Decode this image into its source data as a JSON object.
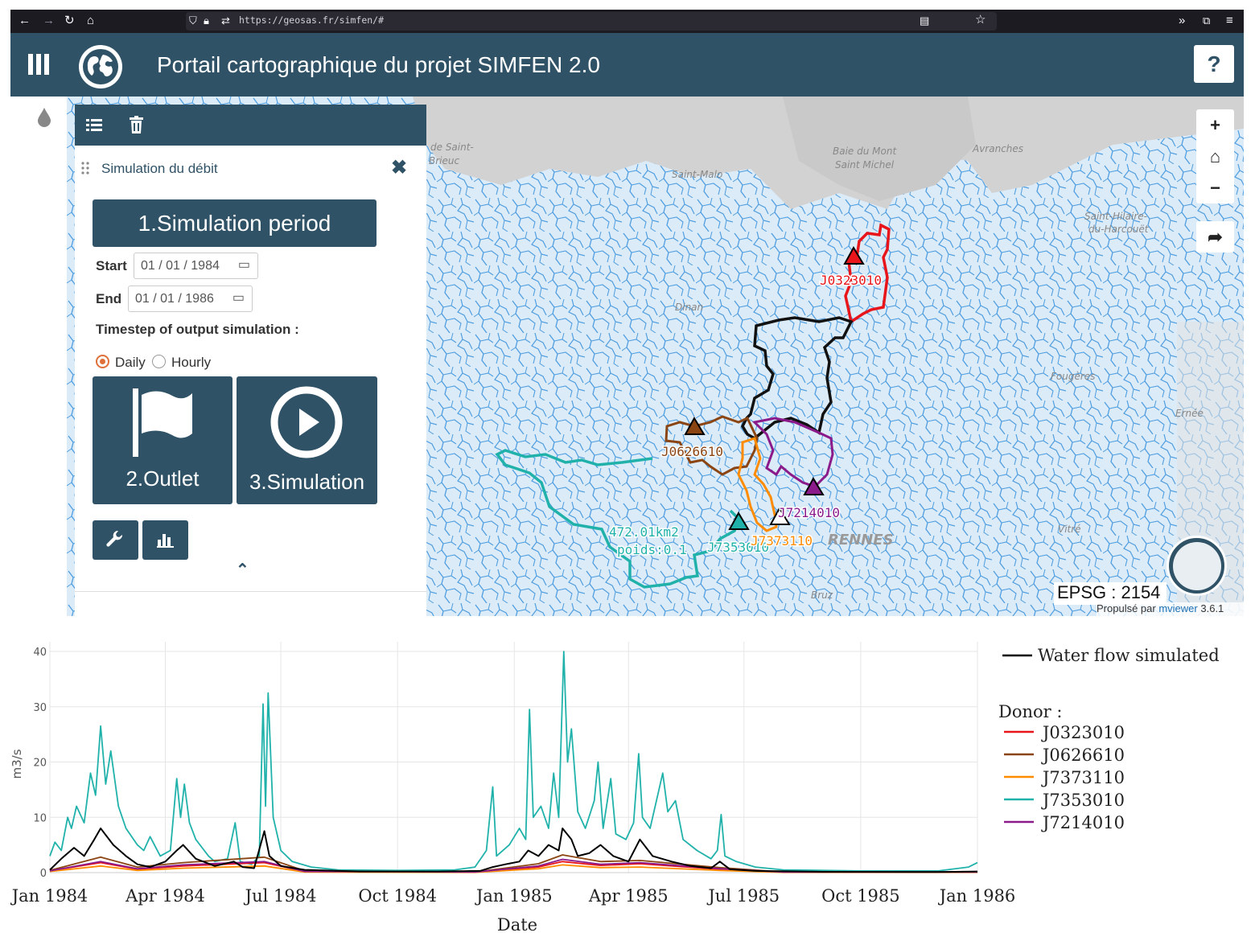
{
  "browser": {
    "url": "https://geosas.fr/simfen/#"
  },
  "app": {
    "title": "Portail cartographique du projet SIMFEN 2.0",
    "help_label": "?",
    "colors": {
      "primary": "#2f5266",
      "river": "#4f9ee0"
    }
  },
  "panel": {
    "title": "Simulation du débit",
    "step1_label": "1.Simulation period",
    "start_label": "Start",
    "start_value": "01 / 01 / 1984",
    "end_label": "End",
    "end_value": "01 / 01 / 1986",
    "timestep_label": "Timestep of output simulation :",
    "timestep_options": [
      "Daily",
      "Hourly"
    ],
    "timestep_selected": "Daily",
    "step2_label": "2.Outlet",
    "step3_label": "3.Simulation"
  },
  "map": {
    "place_labels": [
      "Baie de Saint-\nBrieuc",
      "Baie du Mont\nSaint Michel",
      "Saint-Malo",
      "Avranches",
      "Saint-Hilaire-\ndu-Harcouët",
      "Dinan",
      "Fougères",
      "Ernée",
      "RENNES",
      "Vitré",
      "Bruz"
    ],
    "stations": [
      {
        "code": "J0323010",
        "color": "#e8161b"
      },
      {
        "code": "J0626610",
        "color": "#8b4513"
      },
      {
        "code": "J7214010",
        "color": "#8b1a8b"
      },
      {
        "code": "J7353010",
        "color": "#20b2aa"
      },
      {
        "code": "J7373110",
        "color": "#ff8c00"
      }
    ],
    "area_label": "472.01km2",
    "weight_label": "poids:0.1",
    "epsg_label": "EPSG : 2154",
    "credit_prefix": "Propulsé par",
    "credit_link": "mviewer",
    "credit_version": "3.6.1"
  },
  "chart_data": {
    "type": "line",
    "xlabel": "Date",
    "ylabel": "m3/s",
    "ylim": [
      0,
      40
    ],
    "yticks": [
      0,
      10,
      20,
      30,
      40
    ],
    "xticks": [
      "Jan 1984",
      "Apr 1984",
      "Jul 1984",
      "Oct 1984",
      "Jan 1985",
      "Apr 1985",
      "Jul 1985",
      "Oct 1985",
      "Jan 1986"
    ],
    "legend_main": "Water flow simulated",
    "legend_donor_title": "Donor :",
    "series": [
      {
        "name": "Water flow simulated",
        "color": "#000000",
        "points": [
          [
            "1984-01-01",
            0.5
          ],
          [
            "1984-01-10",
            2.5
          ],
          [
            "1984-01-20",
            4.5
          ],
          [
            "1984-01-28",
            3
          ],
          [
            "1984-02-05",
            6
          ],
          [
            "1984-02-10",
            8
          ],
          [
            "1984-02-20",
            5
          ],
          [
            "1984-03-01",
            3
          ],
          [
            "1984-03-10",
            1.5
          ],
          [
            "1984-03-20",
            1
          ],
          [
            "1984-04-01",
            2
          ],
          [
            "1984-04-10",
            4
          ],
          [
            "1984-04-15",
            5
          ],
          [
            "1984-04-25",
            2.5
          ],
          [
            "1984-05-10",
            1.2
          ],
          [
            "1984-05-25",
            2
          ],
          [
            "1984-06-01",
            1
          ],
          [
            "1984-06-10",
            0.8
          ],
          [
            "1984-06-18",
            7.5
          ],
          [
            "1984-06-22",
            3
          ],
          [
            "1984-07-01",
            1.2
          ],
          [
            "1984-07-20",
            0.5
          ],
          [
            "1984-09-01",
            0.2
          ],
          [
            "1984-11-01",
            0.2
          ],
          [
            "1984-12-05",
            0.3
          ],
          [
            "1984-12-15",
            1
          ],
          [
            "1984-12-25",
            1.5
          ],
          [
            "1985-01-05",
            2
          ],
          [
            "1985-01-12",
            4
          ],
          [
            "1985-01-20",
            3
          ],
          [
            "1985-01-28",
            5
          ],
          [
            "1985-02-05",
            4
          ],
          [
            "1985-02-08",
            8
          ],
          [
            "1985-02-15",
            6
          ],
          [
            "1985-02-20",
            3
          ],
          [
            "1985-03-01",
            3.5
          ],
          [
            "1985-03-10",
            5
          ],
          [
            "1985-03-20",
            3
          ],
          [
            "1985-04-01",
            2
          ],
          [
            "1985-04-10",
            6
          ],
          [
            "1985-04-20",
            3
          ],
          [
            "1985-05-05",
            2
          ],
          [
            "1985-05-20",
            1.2
          ],
          [
            "1985-06-05",
            0.8
          ],
          [
            "1985-06-12",
            2
          ],
          [
            "1985-06-20",
            0.6
          ],
          [
            "1985-07-10",
            0.3
          ],
          [
            "1985-09-01",
            0.15
          ],
          [
            "1985-12-01",
            0.1
          ],
          [
            "1986-01-01",
            0.2
          ]
        ]
      },
      {
        "name": "J0323010",
        "color": "#e8161b",
        "points": [
          [
            "1984-01-01",
            0.3
          ],
          [
            "1984-02-10",
            1.8
          ],
          [
            "1984-03-10",
            0.6
          ],
          [
            "1984-04-15",
            1.2
          ],
          [
            "1984-06-18",
            1.8
          ],
          [
            "1984-07-20",
            0.2
          ],
          [
            "1984-12-01",
            0.1
          ],
          [
            "1985-01-20",
            1
          ],
          [
            "1985-02-08",
            2
          ],
          [
            "1985-03-10",
            1.3
          ],
          [
            "1985-04-10",
            1.6
          ],
          [
            "1985-06-12",
            0.6
          ],
          [
            "1985-08-01",
            0.1
          ],
          [
            "1986-01-01",
            0.1
          ]
        ]
      },
      {
        "name": "J0626610",
        "color": "#8b4513",
        "points": [
          [
            "1984-01-01",
            0.4
          ],
          [
            "1984-02-10",
            2.8
          ],
          [
            "1984-03-10",
            1
          ],
          [
            "1984-04-15",
            1.8
          ],
          [
            "1984-06-18",
            2.8
          ],
          [
            "1984-07-20",
            0.3
          ],
          [
            "1984-12-01",
            0.1
          ],
          [
            "1985-01-20",
            1.6
          ],
          [
            "1985-02-08",
            3.2
          ],
          [
            "1985-03-10",
            2
          ],
          [
            "1985-04-10",
            2.2
          ],
          [
            "1985-06-12",
            0.9
          ],
          [
            "1985-08-01",
            0.1
          ],
          [
            "1986-01-01",
            0.1
          ]
        ]
      },
      {
        "name": "J7373110",
        "color": "#ff8c00",
        "points": [
          [
            "1984-01-01",
            0.2
          ],
          [
            "1984-02-10",
            1.2
          ],
          [
            "1984-03-10",
            0.4
          ],
          [
            "1984-04-15",
            0.8
          ],
          [
            "1984-06-18",
            1.2
          ],
          [
            "1984-07-20",
            0.1
          ],
          [
            "1984-12-01",
            0.05
          ],
          [
            "1985-01-20",
            0.7
          ],
          [
            "1985-02-08",
            1.4
          ],
          [
            "1985-03-10",
            0.9
          ],
          [
            "1985-04-10",
            1
          ],
          [
            "1985-06-12",
            0.4
          ],
          [
            "1985-08-01",
            0.05
          ],
          [
            "1986-01-01",
            0.05
          ]
        ]
      },
      {
        "name": "J7353010",
        "color": "#20b2aa",
        "points": [
          [
            "1984-01-01",
            3
          ],
          [
            "1984-01-05",
            5.5
          ],
          [
            "1984-01-10",
            4
          ],
          [
            "1984-01-15",
            10
          ],
          [
            "1984-01-18",
            8
          ],
          [
            "1984-01-22",
            12
          ],
          [
            "1984-01-28",
            9
          ],
          [
            "1984-02-02",
            18
          ],
          [
            "1984-02-06",
            14
          ],
          [
            "1984-02-10",
            26.5
          ],
          [
            "1984-02-14",
            16
          ],
          [
            "1984-02-18",
            22
          ],
          [
            "1984-02-24",
            12
          ],
          [
            "1984-03-01",
            8
          ],
          [
            "1984-03-10",
            5
          ],
          [
            "1984-03-15",
            4
          ],
          [
            "1984-03-20",
            6.5
          ],
          [
            "1984-03-28",
            3
          ],
          [
            "1984-04-05",
            4
          ],
          [
            "1984-04-10",
            17
          ],
          [
            "1984-04-13",
            10
          ],
          [
            "1984-04-16",
            16
          ],
          [
            "1984-04-20",
            9
          ],
          [
            "1984-04-25",
            6
          ],
          [
            "1984-05-05",
            3
          ],
          [
            "1984-05-10",
            2
          ],
          [
            "1984-05-20",
            2.5
          ],
          [
            "1984-05-26",
            9
          ],
          [
            "1984-05-30",
            2
          ],
          [
            "1984-06-08",
            1.5
          ],
          [
            "1984-06-14",
            3
          ],
          [
            "1984-06-17",
            30.5
          ],
          [
            "1984-06-19",
            12
          ],
          [
            "1984-06-21",
            32.5
          ],
          [
            "1984-06-25",
            10
          ],
          [
            "1984-07-01",
            4
          ],
          [
            "1984-07-10",
            2
          ],
          [
            "1984-07-25",
            1
          ],
          [
            "1984-08-15",
            0.5
          ],
          [
            "1984-10-01",
            0.4
          ],
          [
            "1984-11-15",
            0.5
          ],
          [
            "1984-12-01",
            1
          ],
          [
            "1984-12-10",
            4
          ],
          [
            "1984-12-15",
            15.5
          ],
          [
            "1984-12-18",
            3
          ],
          [
            "1984-12-28",
            5
          ],
          [
            "1985-01-05",
            8
          ],
          [
            "1985-01-10",
            6
          ],
          [
            "1985-01-13",
            29.5
          ],
          [
            "1985-01-16",
            10
          ],
          [
            "1985-01-22",
            12
          ],
          [
            "1985-01-28",
            8
          ],
          [
            "1985-02-01",
            18
          ],
          [
            "1985-02-05",
            10
          ],
          [
            "1985-02-09",
            40
          ],
          [
            "1985-02-12",
            20
          ],
          [
            "1985-02-15",
            26
          ],
          [
            "1985-02-20",
            11
          ],
          [
            "1985-02-26",
            8
          ],
          [
            "1985-03-05",
            13
          ],
          [
            "1985-03-08",
            20
          ],
          [
            "1985-03-12",
            8
          ],
          [
            "1985-03-18",
            17
          ],
          [
            "1985-03-22",
            7
          ],
          [
            "1985-03-30",
            6
          ],
          [
            "1985-04-05",
            9
          ],
          [
            "1985-04-09",
            21.5
          ],
          [
            "1985-04-12",
            10
          ],
          [
            "1985-04-18",
            8
          ],
          [
            "1985-04-25",
            15
          ],
          [
            "1985-04-28",
            18
          ],
          [
            "1985-05-02",
            11
          ],
          [
            "1985-05-08",
            13
          ],
          [
            "1985-05-14",
            6
          ],
          [
            "1985-05-25",
            4
          ],
          [
            "1985-06-05",
            2.5
          ],
          [
            "1985-06-10",
            4
          ],
          [
            "1985-06-13",
            10.5
          ],
          [
            "1985-06-16",
            3
          ],
          [
            "1985-06-25",
            2
          ],
          [
            "1985-07-10",
            1
          ],
          [
            "1985-08-01",
            0.5
          ],
          [
            "1985-10-01",
            0.3
          ],
          [
            "1985-12-01",
            0.3
          ],
          [
            "1985-12-25",
            1
          ],
          [
            "1986-01-01",
            1.8
          ]
        ]
      },
      {
        "name": "J7214010",
        "color": "#8b1a8b",
        "points": [
          [
            "1984-01-01",
            0.3
          ],
          [
            "1984-02-10",
            2
          ],
          [
            "1984-03-10",
            0.7
          ],
          [
            "1984-04-15",
            1.4
          ],
          [
            "1984-06-18",
            2
          ],
          [
            "1984-07-20",
            0.2
          ],
          [
            "1984-12-01",
            0.1
          ],
          [
            "1985-01-20",
            1.2
          ],
          [
            "1985-02-08",
            2.4
          ],
          [
            "1985-03-10",
            1.5
          ],
          [
            "1985-04-10",
            1.8
          ],
          [
            "1985-06-12",
            0.7
          ],
          [
            "1985-08-01",
            0.1
          ],
          [
            "1986-01-01",
            0.1
          ]
        ]
      }
    ]
  }
}
